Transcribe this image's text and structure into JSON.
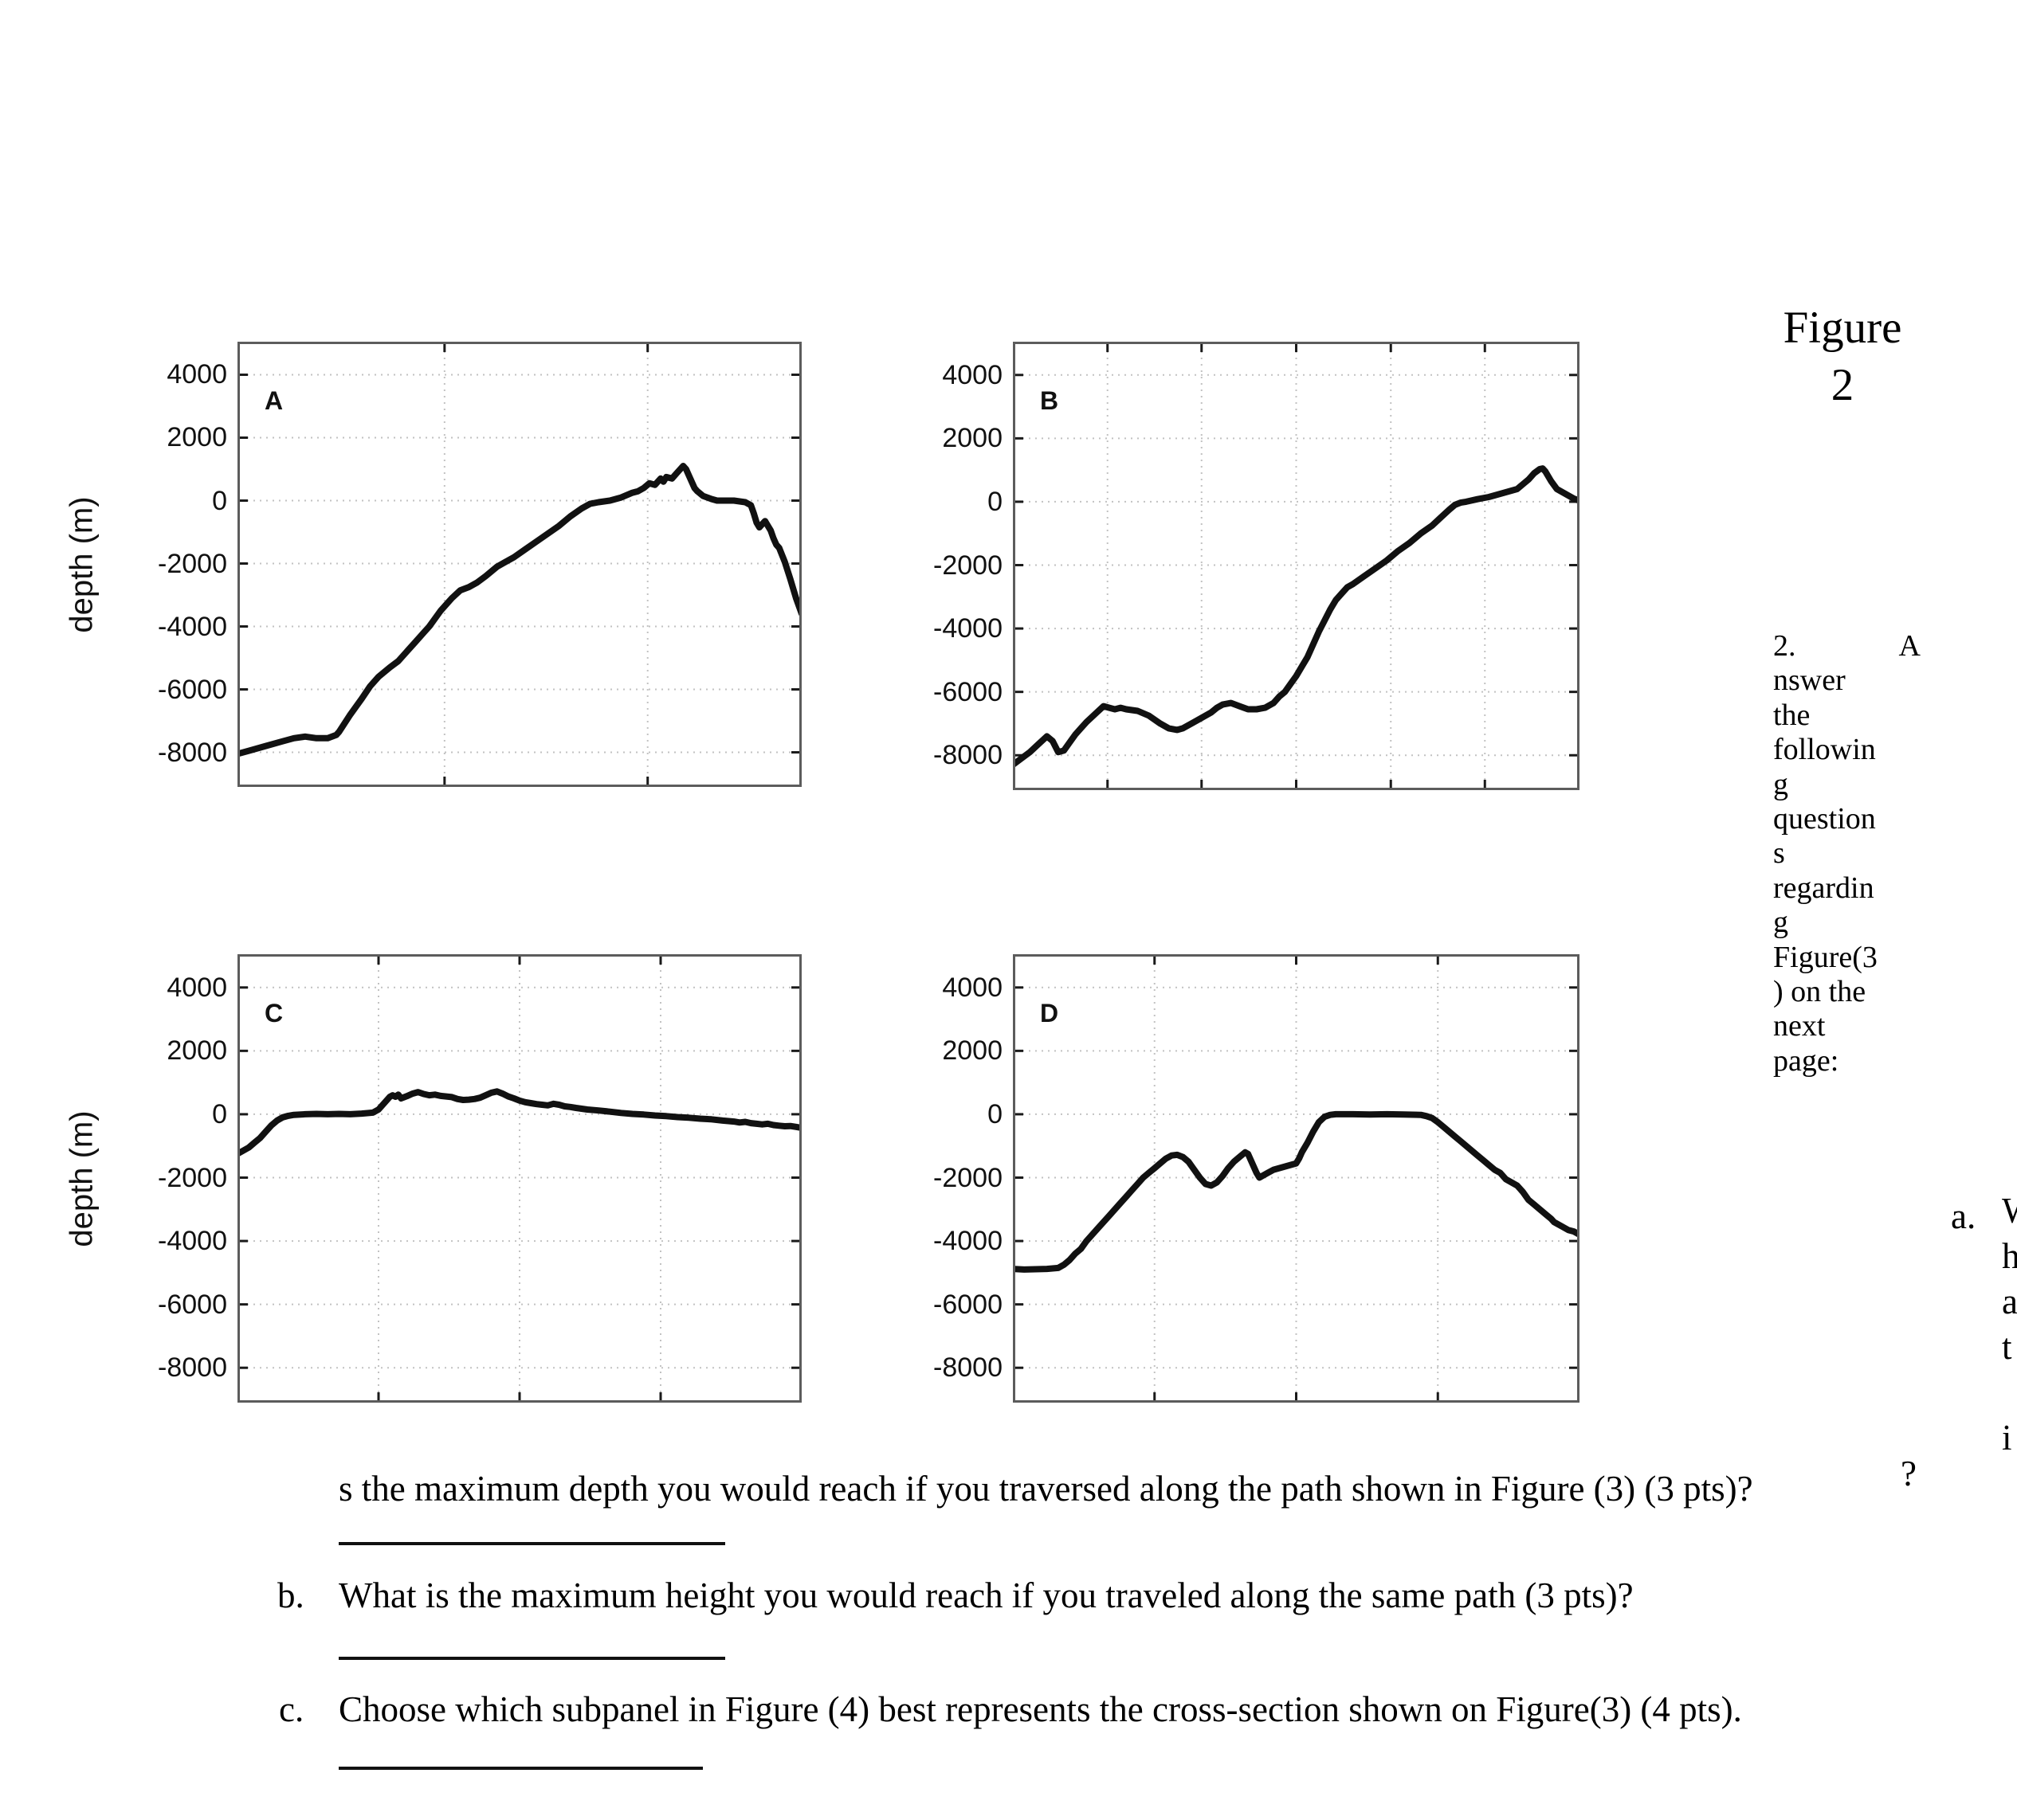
{
  "colors": {
    "curve": "#111111",
    "axis_border": "#5c5c5c",
    "grid": "#c2c2c2",
    "tick": "#1a1a1a",
    "text": "#000000"
  },
  "figure_caption": {
    "line1": "Figure",
    "line2": "2"
  },
  "side_note": {
    "first_line_marker": "2.",
    "first_line_char": "A",
    "rest_lines": [
      "nswer",
      "the",
      "followin",
      "g",
      "question",
      "s",
      "regardin",
      "g",
      "Figure(3",
      ") on the",
      "next",
      "page:"
    ]
  },
  "item_a": {
    "marker": "a.",
    "stacked_chars": [
      "W",
      "h",
      "a",
      "t",
      "i"
    ],
    "stray_fragment": "?"
  },
  "questions": {
    "a_continuation": "s the maximum depth you would reach if you traversed along the path shown in Figure (3) (3 pts)?",
    "b_marker": "b.",
    "b_text": "What is the maximum height you would reach if you traveled along the same path (3 pts)?",
    "c_marker": "c.",
    "c_text": "Choose which subpanel in Figure (4) best represents the cross-section shown on Figure(3) (4 pts)."
  },
  "axis": {
    "ylabel": "depth (m)",
    "ytick_labels": [
      "4000",
      "2000",
      "0",
      "-2000",
      "-4000",
      "-6000",
      "-8000"
    ]
  },
  "chart_data": [
    {
      "type": "line",
      "panel": "A",
      "ylabel": "depth (m)",
      "ylim": [
        -9100,
        5050
      ],
      "yticks": [
        4000,
        2000,
        0,
        -2000,
        -4000,
        -6000,
        -8000
      ],
      "x_gridlines": [
        0.367,
        0.727
      ],
      "grid": true,
      "points": [
        [
          0,
          -8050
        ],
        [
          0.02,
          -7950
        ],
        [
          0.05,
          -7800
        ],
        [
          0.08,
          -7650
        ],
        [
          0.1,
          -7550
        ],
        [
          0.12,
          -7500
        ],
        [
          0.14,
          -7550
        ],
        [
          0.16,
          -7550
        ],
        [
          0.175,
          -7450
        ],
        [
          0.18,
          -7350
        ],
        [
          0.2,
          -6800
        ],
        [
          0.22,
          -6300
        ],
        [
          0.235,
          -5900
        ],
        [
          0.25,
          -5600
        ],
        [
          0.27,
          -5300
        ],
        [
          0.285,
          -5100
        ],
        [
          0.3,
          -4800
        ],
        [
          0.315,
          -4500
        ],
        [
          0.33,
          -4200
        ],
        [
          0.34,
          -4000
        ],
        [
          0.36,
          -3500
        ],
        [
          0.38,
          -3100
        ],
        [
          0.395,
          -2850
        ],
        [
          0.41,
          -2750
        ],
        [
          0.425,
          -2600
        ],
        [
          0.44,
          -2400
        ],
        [
          0.46,
          -2100
        ],
        [
          0.475,
          -1950
        ],
        [
          0.49,
          -1800
        ],
        [
          0.51,
          -1550
        ],
        [
          0.53,
          -1300
        ],
        [
          0.55,
          -1050
        ],
        [
          0.57,
          -800
        ],
        [
          0.59,
          -500
        ],
        [
          0.61,
          -250
        ],
        [
          0.625,
          -100
        ],
        [
          0.64,
          -50
        ],
        [
          0.66,
          0
        ],
        [
          0.68,
          100
        ],
        [
          0.7,
          250
        ],
        [
          0.71,
          300
        ],
        [
          0.72,
          400
        ],
        [
          0.73,
          550
        ],
        [
          0.74,
          500
        ],
        [
          0.75,
          700
        ],
        [
          0.755,
          600
        ],
        [
          0.76,
          750
        ],
        [
          0.77,
          700
        ],
        [
          0.78,
          900
        ],
        [
          0.79,
          1100
        ],
        [
          0.795,
          1000
        ],
        [
          0.8,
          800
        ],
        [
          0.81,
          400
        ],
        [
          0.815,
          300
        ],
        [
          0.825,
          150
        ],
        [
          0.84,
          50
        ],
        [
          0.85,
          0
        ],
        [
          0.86,
          0
        ],
        [
          0.88,
          0
        ],
        [
          0.9,
          -50
        ],
        [
          0.91,
          -150
        ],
        [
          0.915,
          -400
        ],
        [
          0.92,
          -700
        ],
        [
          0.925,
          -850
        ],
        [
          0.93,
          -750
        ],
        [
          0.935,
          -650
        ],
        [
          0.94,
          -800
        ],
        [
          0.945,
          -950
        ],
        [
          0.95,
          -1200
        ],
        [
          0.955,
          -1400
        ],
        [
          0.96,
          -1500
        ],
        [
          0.97,
          -1950
        ],
        [
          0.98,
          -2500
        ],
        [
          0.99,
          -3100
        ],
        [
          1.0,
          -3600
        ]
      ]
    },
    {
      "type": "line",
      "panel": "B",
      "ylabel": "depth (m)",
      "ylim": [
        -9100,
        5050
      ],
      "yticks": [
        4000,
        2000,
        0,
        -2000,
        -4000,
        -6000,
        -8000
      ],
      "x_gridlines": [
        0.167,
        0.333,
        0.5,
        0.667,
        0.833
      ],
      "grid": true,
      "points": [
        [
          0,
          -8300
        ],
        [
          0.015,
          -8100
        ],
        [
          0.03,
          -7900
        ],
        [
          0.045,
          -7650
        ],
        [
          0.06,
          -7400
        ],
        [
          0.07,
          -7550
        ],
        [
          0.08,
          -7900
        ],
        [
          0.09,
          -7850
        ],
        [
          0.1,
          -7600
        ],
        [
          0.11,
          -7350
        ],
        [
          0.12,
          -7150
        ],
        [
          0.13,
          -6950
        ],
        [
          0.145,
          -6700
        ],
        [
          0.16,
          -6450
        ],
        [
          0.17,
          -6500
        ],
        [
          0.18,
          -6550
        ],
        [
          0.19,
          -6500
        ],
        [
          0.2,
          -6550
        ],
        [
          0.22,
          -6600
        ],
        [
          0.24,
          -6750
        ],
        [
          0.26,
          -7000
        ],
        [
          0.275,
          -7150
        ],
        [
          0.29,
          -7200
        ],
        [
          0.3,
          -7150
        ],
        [
          0.32,
          -6950
        ],
        [
          0.33,
          -6850
        ],
        [
          0.35,
          -6650
        ],
        [
          0.36,
          -6500
        ],
        [
          0.37,
          -6400
        ],
        [
          0.385,
          -6350
        ],
        [
          0.4,
          -6450
        ],
        [
          0.415,
          -6550
        ],
        [
          0.43,
          -6550
        ],
        [
          0.445,
          -6500
        ],
        [
          0.46,
          -6350
        ],
        [
          0.47,
          -6150
        ],
        [
          0.48,
          -6000
        ],
        [
          0.49,
          -5750
        ],
        [
          0.5,
          -5500
        ],
        [
          0.51,
          -5200
        ],
        [
          0.52,
          -4900
        ],
        [
          0.53,
          -4500
        ],
        [
          0.54,
          -4100
        ],
        [
          0.55,
          -3750
        ],
        [
          0.56,
          -3400
        ],
        [
          0.57,
          -3100
        ],
        [
          0.58,
          -2900
        ],
        [
          0.59,
          -2700
        ],
        [
          0.6,
          -2600
        ],
        [
          0.62,
          -2350
        ],
        [
          0.64,
          -2100
        ],
        [
          0.66,
          -1850
        ],
        [
          0.68,
          -1550
        ],
        [
          0.7,
          -1300
        ],
        [
          0.72,
          -1000
        ],
        [
          0.74,
          -750
        ],
        [
          0.755,
          -500
        ],
        [
          0.77,
          -250
        ],
        [
          0.78,
          -100
        ],
        [
          0.79,
          -30
        ],
        [
          0.8,
          0
        ],
        [
          0.82,
          80
        ],
        [
          0.84,
          150
        ],
        [
          0.86,
          250
        ],
        [
          0.88,
          350
        ],
        [
          0.89,
          400
        ],
        [
          0.9,
          550
        ],
        [
          0.91,
          700
        ],
        [
          0.92,
          900
        ],
        [
          0.93,
          1030
        ],
        [
          0.935,
          1050
        ],
        [
          0.94,
          950
        ],
        [
          0.95,
          650
        ],
        [
          0.96,
          400
        ],
        [
          0.97,
          300
        ],
        [
          0.98,
          200
        ],
        [
          0.99,
          100
        ],
        [
          1.0,
          30
        ]
      ]
    },
    {
      "type": "line",
      "panel": "C",
      "ylabel": "depth (m)",
      "ylim": [
        -9100,
        5050
      ],
      "yticks": [
        4000,
        2000,
        0,
        -2000,
        -4000,
        -6000,
        -8000
      ],
      "x_gridlines": [
        0.25,
        0.5,
        0.75
      ],
      "grid": true,
      "points": [
        [
          0,
          -1250
        ],
        [
          0.01,
          -1150
        ],
        [
          0.02,
          -1050
        ],
        [
          0.03,
          -900
        ],
        [
          0.04,
          -750
        ],
        [
          0.05,
          -550
        ],
        [
          0.06,
          -350
        ],
        [
          0.07,
          -200
        ],
        [
          0.08,
          -100
        ],
        [
          0.09,
          -50
        ],
        [
          0.1,
          -20
        ],
        [
          0.12,
          0
        ],
        [
          0.14,
          10
        ],
        [
          0.16,
          0
        ],
        [
          0.18,
          10
        ],
        [
          0.2,
          0
        ],
        [
          0.22,
          20
        ],
        [
          0.24,
          50
        ],
        [
          0.25,
          150
        ],
        [
          0.26,
          350
        ],
        [
          0.27,
          550
        ],
        [
          0.275,
          600
        ],
        [
          0.28,
          550
        ],
        [
          0.285,
          620
        ],
        [
          0.29,
          500
        ],
        [
          0.3,
          570
        ],
        [
          0.31,
          650
        ],
        [
          0.32,
          700
        ],
        [
          0.33,
          640
        ],
        [
          0.34,
          600
        ],
        [
          0.35,
          620
        ],
        [
          0.36,
          580
        ],
        [
          0.37,
          560
        ],
        [
          0.38,
          540
        ],
        [
          0.39,
          480
        ],
        [
          0.4,
          450
        ],
        [
          0.41,
          460
        ],
        [
          0.42,
          480
        ],
        [
          0.43,
          520
        ],
        [
          0.44,
          600
        ],
        [
          0.45,
          680
        ],
        [
          0.46,
          720
        ],
        [
          0.47,
          650
        ],
        [
          0.48,
          560
        ],
        [
          0.49,
          500
        ],
        [
          0.5,
          430
        ],
        [
          0.51,
          380
        ],
        [
          0.52,
          350
        ],
        [
          0.53,
          320
        ],
        [
          0.54,
          300
        ],
        [
          0.55,
          280
        ],
        [
          0.56,
          330
        ],
        [
          0.57,
          300
        ],
        [
          0.58,
          250
        ],
        [
          0.59,
          230
        ],
        [
          0.6,
          200
        ],
        [
          0.62,
          150
        ],
        [
          0.64,
          120
        ],
        [
          0.66,
          80
        ],
        [
          0.68,
          40
        ],
        [
          0.7,
          10
        ],
        [
          0.72,
          -10
        ],
        [
          0.74,
          -40
        ],
        [
          0.76,
          -60
        ],
        [
          0.78,
          -90
        ],
        [
          0.8,
          -110
        ],
        [
          0.82,
          -140
        ],
        [
          0.84,
          -160
        ],
        [
          0.86,
          -200
        ],
        [
          0.88,
          -230
        ],
        [
          0.89,
          -260
        ],
        [
          0.9,
          -240
        ],
        [
          0.91,
          -280
        ],
        [
          0.92,
          -300
        ],
        [
          0.93,
          -320
        ],
        [
          0.94,
          -300
        ],
        [
          0.95,
          -340
        ],
        [
          0.96,
          -360
        ],
        [
          0.97,
          -380
        ],
        [
          0.98,
          -370
        ],
        [
          0.99,
          -400
        ],
        [
          1.0,
          -430
        ]
      ]
    },
    {
      "type": "line",
      "panel": "D",
      "ylabel": "depth (m)",
      "ylim": [
        -9100,
        5050
      ],
      "yticks": [
        4000,
        2000,
        0,
        -2000,
        -4000,
        -6000,
        -8000
      ],
      "x_gridlines": [
        0.25,
        0.5,
        0.75
      ],
      "grid": true,
      "points": [
        [
          0,
          -4880
        ],
        [
          0.02,
          -4900
        ],
        [
          0.04,
          -4890
        ],
        [
          0.06,
          -4880
        ],
        [
          0.08,
          -4850
        ],
        [
          0.09,
          -4750
        ],
        [
          0.1,
          -4600
        ],
        [
          0.11,
          -4400
        ],
        [
          0.12,
          -4250
        ],
        [
          0.13,
          -4000
        ],
        [
          0.14,
          -3800
        ],
        [
          0.15,
          -3600
        ],
        [
          0.16,
          -3400
        ],
        [
          0.17,
          -3200
        ],
        [
          0.18,
          -3000
        ],
        [
          0.19,
          -2800
        ],
        [
          0.2,
          -2600
        ],
        [
          0.21,
          -2400
        ],
        [
          0.22,
          -2200
        ],
        [
          0.23,
          -2000
        ],
        [
          0.24,
          -1850
        ],
        [
          0.25,
          -1700
        ],
        [
          0.26,
          -1550
        ],
        [
          0.27,
          -1400
        ],
        [
          0.28,
          -1300
        ],
        [
          0.29,
          -1280
        ],
        [
          0.3,
          -1350
        ],
        [
          0.31,
          -1500
        ],
        [
          0.32,
          -1750
        ],
        [
          0.33,
          -2000
        ],
        [
          0.34,
          -2200
        ],
        [
          0.35,
          -2250
        ],
        [
          0.36,
          -2150
        ],
        [
          0.37,
          -1950
        ],
        [
          0.38,
          -1700
        ],
        [
          0.39,
          -1500
        ],
        [
          0.4,
          -1350
        ],
        [
          0.41,
          -1200
        ],
        [
          0.415,
          -1250
        ],
        [
          0.42,
          -1450
        ],
        [
          0.43,
          -1850
        ],
        [
          0.435,
          -2000
        ],
        [
          0.44,
          -1950
        ],
        [
          0.45,
          -1850
        ],
        [
          0.46,
          -1750
        ],
        [
          0.47,
          -1700
        ],
        [
          0.48,
          -1650
        ],
        [
          0.49,
          -1600
        ],
        [
          0.5,
          -1550
        ],
        [
          0.505,
          -1400
        ],
        [
          0.51,
          -1200
        ],
        [
          0.52,
          -900
        ],
        [
          0.53,
          -550
        ],
        [
          0.54,
          -250
        ],
        [
          0.55,
          -80
        ],
        [
          0.56,
          -20
        ],
        [
          0.57,
          0
        ],
        [
          0.6,
          0
        ],
        [
          0.63,
          -10
        ],
        [
          0.66,
          0
        ],
        [
          0.69,
          -10
        ],
        [
          0.72,
          -20
        ],
        [
          0.73,
          -60
        ],
        [
          0.74,
          -120
        ],
        [
          0.75,
          -250
        ],
        [
          0.76,
          -400
        ],
        [
          0.77,
          -550
        ],
        [
          0.78,
          -700
        ],
        [
          0.79,
          -850
        ],
        [
          0.8,
          -1000
        ],
        [
          0.81,
          -1150
        ],
        [
          0.82,
          -1300
        ],
        [
          0.83,
          -1450
        ],
        [
          0.84,
          -1600
        ],
        [
          0.85,
          -1750
        ],
        [
          0.86,
          -1850
        ],
        [
          0.87,
          -2050
        ],
        [
          0.88,
          -2150
        ],
        [
          0.89,
          -2250
        ],
        [
          0.9,
          -2450
        ],
        [
          0.91,
          -2700
        ],
        [
          0.92,
          -2850
        ],
        [
          0.93,
          -3000
        ],
        [
          0.94,
          -3150
        ],
        [
          0.95,
          -3300
        ],
        [
          0.955,
          -3400
        ],
        [
          0.96,
          -3450
        ],
        [
          0.97,
          -3550
        ],
        [
          0.98,
          -3650
        ],
        [
          0.99,
          -3700
        ],
        [
          1.0,
          -3800
        ]
      ]
    }
  ]
}
